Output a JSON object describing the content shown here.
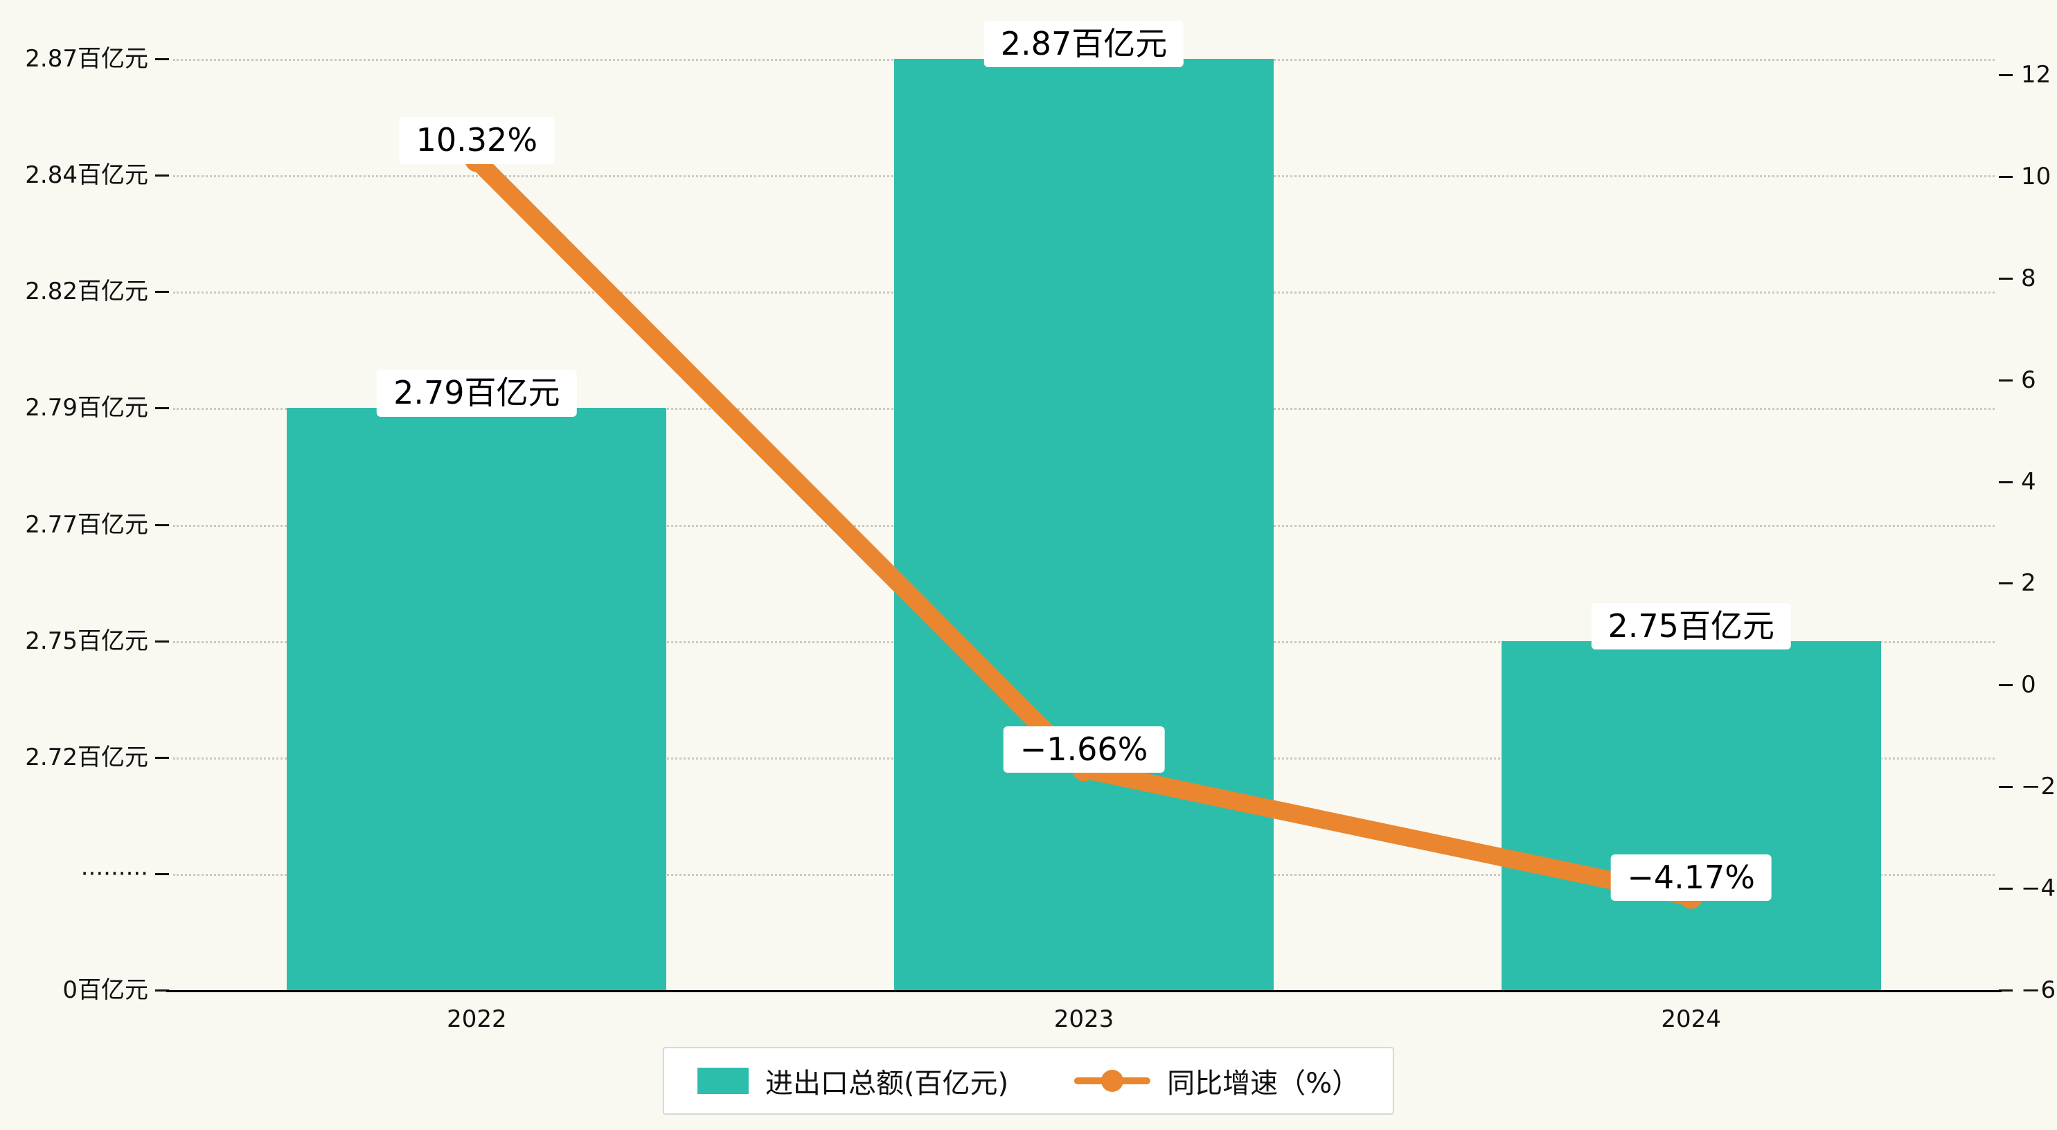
{
  "chart_data": {
    "type": "bar",
    "categories": [
      "2022",
      "2023",
      "2024"
    ],
    "series": [
      {
        "name": "进出口总额(百亿元)",
        "type": "bar",
        "color": "#2dbdab",
        "values": [
          2.79,
          2.87,
          2.75
        ],
        "labels": [
          "2.79百亿元",
          "2.87百亿元",
          "2.75百亿元"
        ]
      },
      {
        "name": "同比增速（%）",
        "type": "line",
        "color": "#e9862f",
        "values": [
          10.32,
          -1.66,
          -4.17
        ],
        "labels": [
          "10.32%",
          "−1.66%",
          "−4.17%"
        ]
      }
    ],
    "left_axis": {
      "unit": "百亿元",
      "ticks": [
        "2.87百亿元",
        "2.84百亿元",
        "2.82百亿元",
        "2.79百亿元",
        "2.77百亿元",
        "2.75百亿元",
        "2.72百亿元",
        "·········",
        "0百亿元"
      ],
      "tick_values": [
        2.87,
        2.84,
        2.82,
        2.79,
        2.77,
        2.75,
        2.72,
        null,
        0
      ],
      "axis_break": true
    },
    "right_axis": {
      "ticks": [
        "12",
        "10",
        "8",
        "6",
        "4",
        "2",
        "0",
        "−2",
        "−4",
        "−6"
      ],
      "min": -6,
      "max": 12
    },
    "legend_position": "bottom",
    "grid": "dotted-horizontal",
    "background": "#f9f8f1"
  }
}
